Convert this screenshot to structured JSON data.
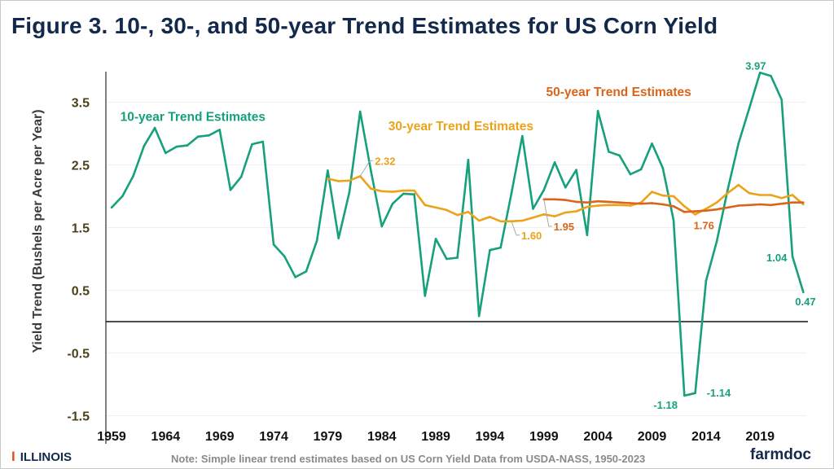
{
  "header": {
    "title": "Figure 3. 10-, 30-, and 50-year Trend Estimates for US Corn Yield"
  },
  "footer": {
    "logo": "ILLINOIS",
    "note": "Note: Simple linear trend estimates based on US Corn Yield Data from USDA-NASS, 1950-2023",
    "brand": "farmdoc"
  },
  "chart_data": {
    "type": "line",
    "title": "Figure 3. 10-, 30-, and 50-year Trend Estimates for US Corn Yield",
    "ylabel": "Yield Trend (Bushels per Acre per Year)",
    "xlabel": "",
    "ylim": [
      -1.5,
      4.0
    ],
    "yticks": [
      "3.5",
      "2.5",
      "1.5",
      "0.5",
      "-0.5",
      "-1.5"
    ],
    "ytick_values": [
      3.5,
      2.5,
      1.5,
      0.5,
      -0.5,
      -1.5
    ],
    "xticks": [
      "1959",
      "1964",
      "1969",
      "1974",
      "1979",
      "1984",
      "1989",
      "1994",
      "1999",
      "2004",
      "2009",
      "2014",
      "2019"
    ],
    "xlim": [
      1959,
      2023
    ],
    "grid": "horizontal",
    "reference_line": 0,
    "series": [
      {
        "name": "10-year Trend Estimates",
        "color": "#16a07c",
        "start": 1959,
        "values": [
          1.82,
          2.0,
          2.32,
          2.8,
          3.09,
          2.69,
          2.79,
          2.81,
          2.95,
          2.97,
          3.06,
          2.1,
          2.31,
          2.83,
          2.87,
          1.23,
          1.04,
          0.71,
          0.8,
          1.29,
          2.41,
          1.33,
          2.06,
          3.35,
          2.4,
          1.52,
          1.88,
          2.04,
          2.03,
          0.41,
          1.32,
          1.0,
          1.02,
          2.58,
          0.09,
          1.14,
          1.18,
          2.05,
          2.96,
          1.8,
          2.1,
          2.54,
          2.14,
          2.42,
          1.38,
          3.36,
          2.71,
          2.65,
          2.35,
          2.43,
          2.84,
          2.45,
          1.62,
          -1.18,
          -1.14,
          0.65,
          1.28,
          2.1,
          2.84,
          3.4,
          3.97,
          3.92,
          3.54,
          1.04,
          0.47
        ]
      },
      {
        "name": "30-year Trend Estimates",
        "color": "#eba31a",
        "start": 1979,
        "values": [
          2.28,
          2.24,
          2.25,
          2.32,
          2.12,
          2.08,
          2.07,
          2.09,
          2.09,
          1.86,
          1.82,
          1.78,
          1.7,
          1.75,
          1.61,
          1.67,
          1.6,
          1.6,
          1.61,
          1.66,
          1.71,
          1.68,
          1.74,
          1.76,
          1.83,
          1.85,
          1.86,
          1.86,
          1.85,
          1.9,
          2.07,
          2.01,
          2.0,
          1.84,
          1.71,
          1.8,
          1.9,
          2.05,
          2.18,
          2.05,
          2.02,
          2.02,
          1.97,
          2.02,
          1.87
        ]
      },
      {
        "name": "50-year Trend Estimates",
        "color": "#d9641a",
        "start": 1999,
        "values": [
          1.95,
          1.95,
          1.94,
          1.91,
          1.9,
          1.92,
          1.91,
          1.9,
          1.89,
          1.88,
          1.89,
          1.87,
          1.84,
          1.75,
          1.76,
          1.77,
          1.79,
          1.82,
          1.85,
          1.86,
          1.87,
          1.86,
          1.88,
          1.9,
          1.9
        ]
      }
    ],
    "annotations": [
      {
        "text": "2.32",
        "series": 1,
        "year": 1982,
        "dx": 14,
        "dy": -14,
        "leader": true
      },
      {
        "text": "1.60",
        "series": 1,
        "year": 1996,
        "dx": 8,
        "dy": 22,
        "leader": true
      },
      {
        "text": "1.95",
        "series": 2,
        "year": 1999,
        "dx": 8,
        "dy": 38,
        "leader": true
      },
      {
        "text": "1.76",
        "series": 2,
        "year": 2013,
        "dx": -6,
        "dy": 22,
        "leader": false
      },
      {
        "text": "3.97",
        "series": 0,
        "year": 2019,
        "dx": -22,
        "dy": -4,
        "leader": false
      },
      {
        "text": "-1.18",
        "series": 0,
        "year": 2012,
        "dx": -42,
        "dy": 16,
        "leader": false
      },
      {
        "text": "-1.14",
        "series": 0,
        "year": 2013,
        "dx": 10,
        "dy": 4,
        "leader": false
      },
      {
        "text": "1.04",
        "series": 0,
        "year": 2022,
        "dx": -36,
        "dy": 6,
        "leader": false
      },
      {
        "text": "0.47",
        "series": 0,
        "year": 2023,
        "dx": -14,
        "dy": 16,
        "leader": false
      }
    ],
    "series_labels": [
      {
        "text": "10-year Trend Estimates",
        "series": 0,
        "year": 1959.8,
        "value": 3.2
      },
      {
        "text": "30-year Trend Estimates",
        "series": 1,
        "year": 1984.6,
        "value": 3.05
      },
      {
        "text": "50-year Trend Estimates",
        "series": 2,
        "year": 1999.2,
        "value": 3.6
      }
    ]
  }
}
